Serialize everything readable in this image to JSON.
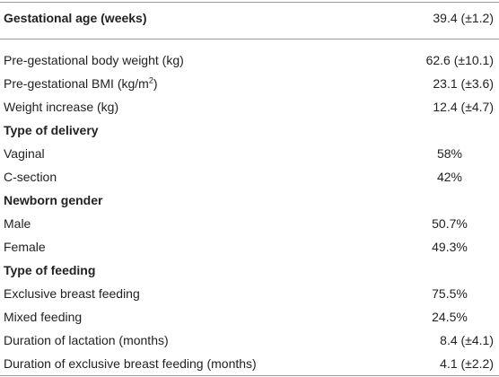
{
  "header": {
    "label": "Gestational age (weeks)",
    "value": "39.4 (±1.2)"
  },
  "rows": [
    {
      "label": "Pre-gestational body weight (kg)",
      "value": "62.6 (±10.1)"
    },
    {
      "label_prefix": "Pre-gestational BMI (kg/m",
      "label_sup": "2",
      "label_suffix": ")",
      "value": "23.1 (±3.6)"
    },
    {
      "label": "Weight increase (kg)",
      "value": "12.4 (±4.7)"
    },
    {
      "section": "Type of delivery"
    },
    {
      "label": "Vaginal",
      "value": "58%"
    },
    {
      "label": "C-section",
      "value": "42%"
    },
    {
      "section": "Newborn gender"
    },
    {
      "label": "Male",
      "value": "50.7%"
    },
    {
      "label": "Female",
      "value": "49.3%"
    },
    {
      "section": "Type of feeding"
    },
    {
      "label": "Exclusive breast feeding",
      "value": "75.5%"
    },
    {
      "label": "Mixed feeding",
      "value": "24.5%"
    },
    {
      "label": "Duration of lactation (months)",
      "value": "8.4 (±4.1)"
    },
    {
      "label": "Duration of exclusive breast feeding (months)",
      "value": "4.1 (±2.2)"
    }
  ]
}
